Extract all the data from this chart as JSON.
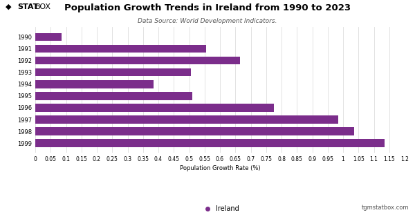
{
  "title": "Population Growth Trends in Ireland from 1990 to 2023",
  "subtitle": "Data Source: World Development Indicators.",
  "xlabel": "Population Growth Rate (%)",
  "footer": "tgmstatbox.com",
  "legend_label": "Ireland",
  "bar_color": "#7B2D8B",
  "background_color": "#ffffff",
  "years": [
    "1999",
    "1998",
    "1997",
    "1996",
    "1995",
    "1994",
    "1993",
    "1992",
    "1991",
    "1990"
  ],
  "values": [
    1.135,
    1.035,
    0.985,
    0.775,
    0.51,
    0.385,
    0.505,
    0.665,
    0.555,
    0.085
  ],
  "xlim": [
    0,
    1.2
  ],
  "xticks": [
    0,
    0.05,
    0.1,
    0.15,
    0.2,
    0.25,
    0.3,
    0.35,
    0.4,
    0.45,
    0.5,
    0.55,
    0.6,
    0.65,
    0.7,
    0.75,
    0.8,
    0.85,
    0.9,
    0.95,
    1.0,
    1.05,
    1.1,
    1.15,
    1.2
  ],
  "xtick_labels": [
    "0",
    "0.05",
    "0.1",
    "0.15",
    "0.2",
    "0.25",
    "0.3",
    "0.35",
    "0.4",
    "0.45",
    "0.5",
    "0.55",
    "0.6",
    "0.65",
    "0.7",
    "0.75",
    "0.8",
    "0.85",
    "0.9",
    "0.95",
    "1",
    "1.05",
    "1.1",
    "1.15",
    "1.2"
  ],
  "grid_color": "#dddddd",
  "title_fontsize": 9.5,
  "subtitle_fontsize": 6.5,
  "ytick_fontsize": 6.0,
  "xtick_fontsize": 5.5,
  "xlabel_fontsize": 6.0,
  "legend_fontsize": 7.0,
  "footer_fontsize": 6.0,
  "bar_height": 0.68
}
